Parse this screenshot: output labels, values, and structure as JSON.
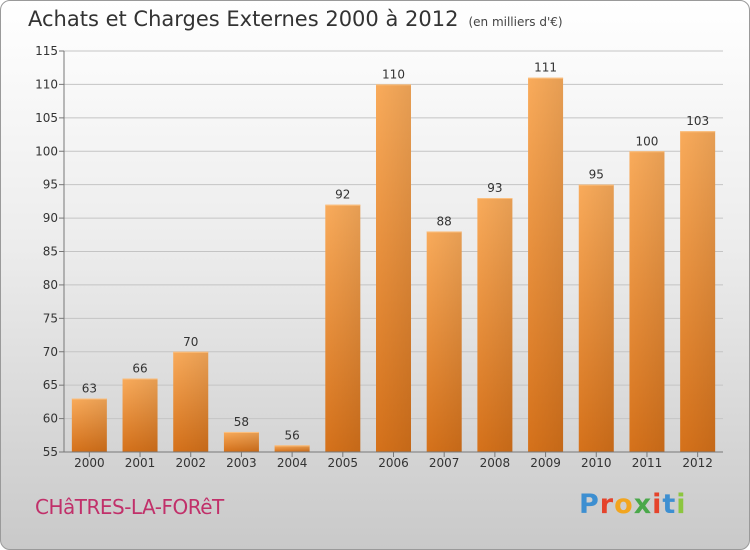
{
  "header": {
    "title": "Achats et Charges Externes 2000 à 2012",
    "unit": "(en milliers d'€)"
  },
  "footer": {
    "place": "CHâTRES-LA-FORêT",
    "logo": "Proxiti"
  },
  "colors": {
    "bar_light": "#f7a654",
    "bar_dark": "#d8741a",
    "place": "#c1306a"
  },
  "chart_data": {
    "type": "bar",
    "title": "Achats et Charges Externes 2000 à 2012",
    "subtitle": "(en milliers d'€)",
    "categories": [
      "2000",
      "2001",
      "2002",
      "2003",
      "2004",
      "2005",
      "2006",
      "2007",
      "2008",
      "2009",
      "2010",
      "2011",
      "2012"
    ],
    "values": [
      63,
      66,
      70,
      58,
      56,
      92,
      110,
      88,
      93,
      111,
      95,
      100,
      103
    ],
    "ylim": [
      55,
      115
    ],
    "yticks": [
      55,
      60,
      65,
      70,
      75,
      80,
      85,
      90,
      95,
      100,
      105,
      110,
      115
    ],
    "grid": true
  }
}
